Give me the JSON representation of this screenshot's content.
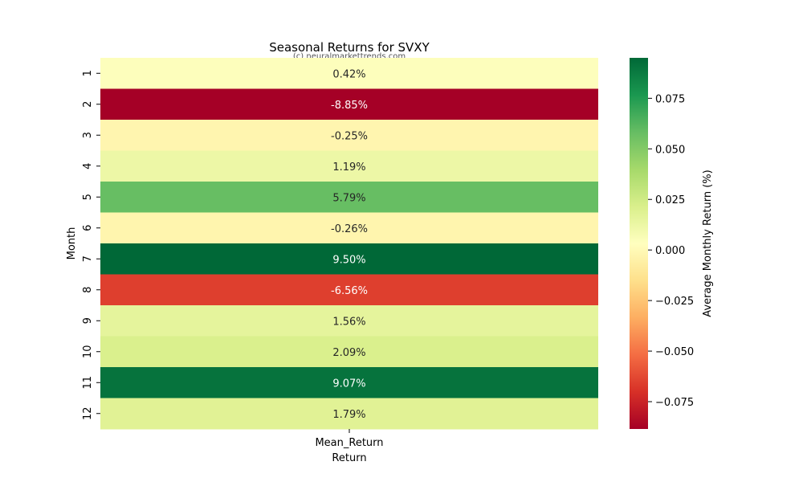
{
  "chart_data": {
    "type": "heatmap",
    "title": "Seasonal Returns for SVXY",
    "watermark": "(c) neuralmarkettrends.com",
    "xlabel": "Return",
    "ylabel": "Month",
    "columns": [
      "Mean_Return"
    ],
    "rows": [
      "1",
      "2",
      "3",
      "4",
      "5",
      "6",
      "7",
      "8",
      "9",
      "10",
      "11",
      "12"
    ],
    "values": [
      0.0042,
      -0.0885,
      -0.0025,
      0.0119,
      0.0579,
      -0.0026,
      0.095,
      -0.0656,
      0.0156,
      0.0209,
      0.0907,
      0.0179
    ],
    "cell_labels": [
      "0.42%",
      "-8.85%",
      "-0.25%",
      "1.19%",
      "5.79%",
      "-0.26%",
      "9.50%",
      "-6.56%",
      "1.56%",
      "2.09%",
      "9.07%",
      "1.79%"
    ],
    "colormap": "RdYlGn",
    "colorbar": {
      "label": "Average Monthly Return (%)",
      "vmin": -0.0885,
      "vmax": 0.095,
      "ticks": [
        0.075,
        0.05,
        0.025,
        0.0,
        -0.025,
        -0.05,
        -0.075
      ],
      "tick_labels": [
        "0.075",
        "0.050",
        "0.025",
        "0.000",
        "−0.025",
        "−0.050",
        "−0.075"
      ]
    }
  }
}
